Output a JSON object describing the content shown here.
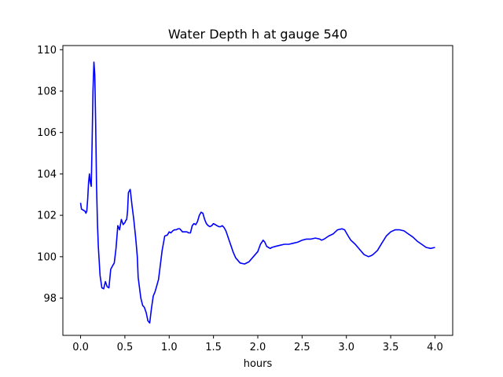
{
  "chart_data": {
    "type": "line",
    "title": "Water Depth h at gauge 540",
    "xlabel": "hours",
    "ylabel": "",
    "xlim": [
      -0.2,
      4.2
    ],
    "ylim": [
      96.2,
      110.2
    ],
    "xticks": [
      0.0,
      0.5,
      1.0,
      1.5,
      2.0,
      2.5,
      3.0,
      3.5,
      4.0
    ],
    "xtick_labels": [
      "0.0",
      "0.5",
      "1.0",
      "1.5",
      "2.0",
      "2.5",
      "3.0",
      "3.5",
      "4.0"
    ],
    "yticks": [
      98,
      100,
      102,
      104,
      106,
      108,
      110
    ],
    "ytick_labels": [
      "98",
      "100",
      "102",
      "104",
      "106",
      "108",
      "110"
    ],
    "grid": false,
    "series": [
      {
        "color": "#0000ff",
        "x": [
          0.0,
          0.01,
          0.03,
          0.05,
          0.06,
          0.07,
          0.08,
          0.09,
          0.1,
          0.11,
          0.12,
          0.13,
          0.14,
          0.15,
          0.16,
          0.17,
          0.18,
          0.19,
          0.2,
          0.22,
          0.24,
          0.26,
          0.28,
          0.3,
          0.32,
          0.34,
          0.36,
          0.38,
          0.4,
          0.42,
          0.44,
          0.46,
          0.48,
          0.5,
          0.51,
          0.52,
          0.53,
          0.54,
          0.56,
          0.58,
          0.6,
          0.61,
          0.62,
          0.63,
          0.64,
          0.65,
          0.68,
          0.7,
          0.72,
          0.74,
          0.76,
          0.78,
          0.8,
          0.82,
          0.84,
          0.86,
          0.88,
          0.9,
          0.92,
          0.95,
          0.98,
          1.0,
          1.02,
          1.04,
          1.06,
          1.08,
          1.1,
          1.12,
          1.15,
          1.18,
          1.2,
          1.22,
          1.24,
          1.26,
          1.28,
          1.3,
          1.32,
          1.34,
          1.36,
          1.38,
          1.4,
          1.42,
          1.44,
          1.46,
          1.48,
          1.5,
          1.52,
          1.54,
          1.56,
          1.58,
          1.6,
          1.62,
          1.64,
          1.66,
          1.68,
          1.7,
          1.72,
          1.75,
          1.8,
          1.85,
          1.9,
          1.95,
          2.0,
          2.03,
          2.06,
          2.08,
          2.1,
          2.12,
          2.14,
          2.16,
          2.2,
          2.25,
          2.3,
          2.35,
          2.4,
          2.45,
          2.5,
          2.55,
          2.6,
          2.65,
          2.7,
          2.72,
          2.75,
          2.8,
          2.85,
          2.9,
          2.95,
          2.98,
          3.0,
          3.02,
          3.05,
          3.1,
          3.15,
          3.2,
          3.25,
          3.28,
          3.3,
          3.35,
          3.4,
          3.45,
          3.5,
          3.55,
          3.6,
          3.65,
          3.7,
          3.75,
          3.8,
          3.85,
          3.9,
          3.95,
          4.0
        ],
        "y": [
          102.6,
          102.3,
          102.25,
          102.2,
          102.1,
          102.2,
          102.8,
          103.6,
          104.0,
          103.6,
          103.4,
          105.5,
          108.0,
          109.4,
          108.8,
          106.5,
          103.5,
          101.6,
          100.5,
          99.1,
          98.5,
          98.45,
          98.8,
          98.55,
          98.5,
          99.4,
          99.55,
          99.7,
          100.4,
          101.5,
          101.3,
          101.8,
          101.55,
          101.65,
          101.75,
          101.8,
          102.2,
          103.1,
          103.25,
          102.5,
          101.8,
          101.4,
          101.0,
          100.5,
          100.0,
          99.0,
          98.0,
          97.65,
          97.55,
          97.3,
          96.9,
          96.8,
          97.5,
          98.1,
          98.3,
          98.6,
          98.9,
          99.6,
          100.3,
          101.0,
          101.05,
          101.2,
          101.15,
          101.25,
          101.3,
          101.3,
          101.35,
          101.35,
          101.2,
          101.2,
          101.2,
          101.15,
          101.15,
          101.5,
          101.6,
          101.55,
          101.7,
          102.0,
          102.15,
          102.1,
          101.8,
          101.6,
          101.5,
          101.45,
          101.5,
          101.6,
          101.55,
          101.5,
          101.45,
          101.45,
          101.5,
          101.4,
          101.25,
          101.0,
          100.75,
          100.5,
          100.25,
          99.95,
          99.7,
          99.65,
          99.75,
          100.0,
          100.25,
          100.6,
          100.8,
          100.7,
          100.5,
          100.45,
          100.4,
          100.45,
          100.5,
          100.55,
          100.6,
          100.6,
          100.65,
          100.7,
          100.8,
          100.85,
          100.85,
          100.9,
          100.85,
          100.8,
          100.85,
          101.0,
          101.1,
          101.3,
          101.35,
          101.3,
          101.15,
          101.0,
          100.8,
          100.6,
          100.35,
          100.1,
          100.0,
          100.05,
          100.1,
          100.3,
          100.65,
          101.0,
          101.2,
          101.3,
          101.3,
          101.25,
          101.1,
          100.95,
          100.75,
          100.6,
          100.45,
          100.4,
          100.45
        ]
      }
    ]
  }
}
